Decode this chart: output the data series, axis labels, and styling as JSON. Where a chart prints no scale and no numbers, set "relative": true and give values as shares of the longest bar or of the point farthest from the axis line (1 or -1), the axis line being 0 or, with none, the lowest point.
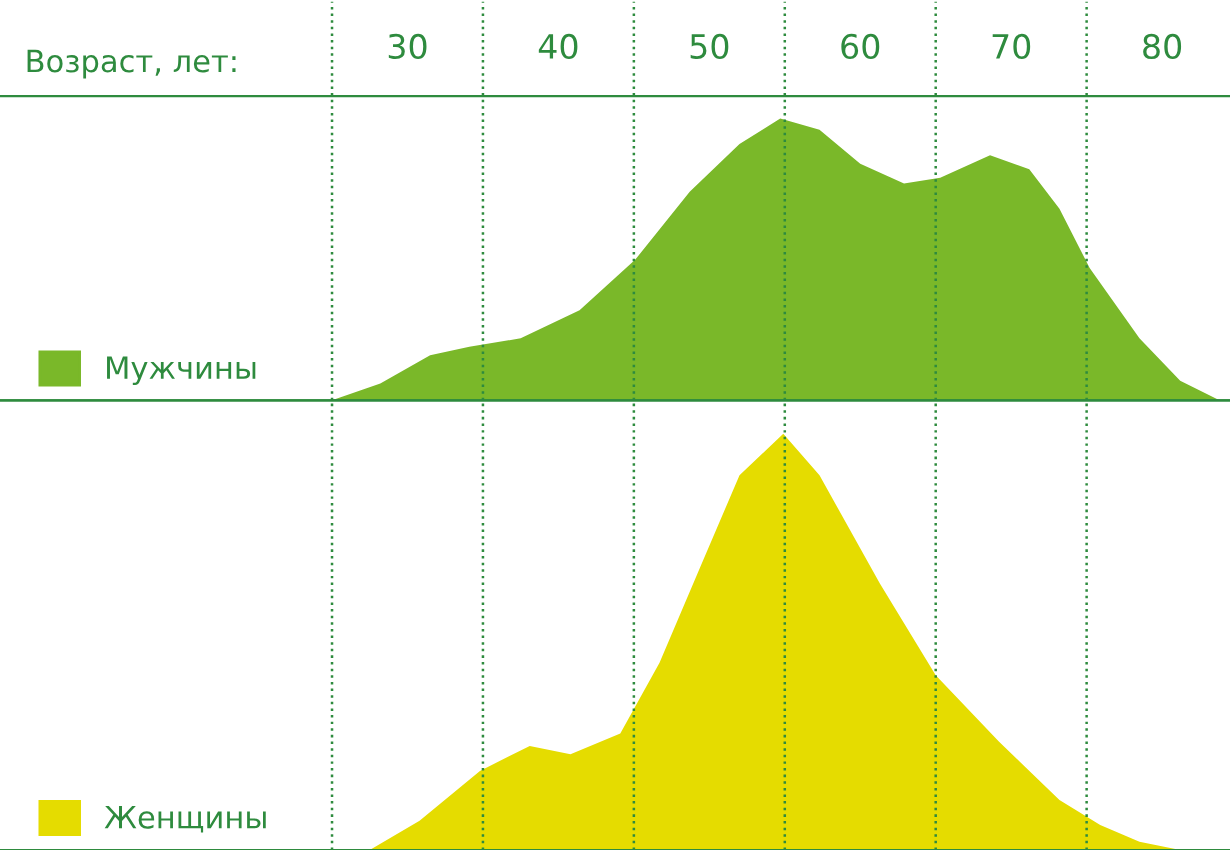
{
  "chart_data": [
    {
      "type": "area",
      "xlabel": "Возраст, лет:",
      "relative": true,
      "xlim": [
        3,
        84.5
      ],
      "xticks": [
        30,
        40,
        50,
        60,
        70,
        80
      ],
      "tick_labels": "x",
      "legend": "bottom left",
      "grid": false,
      "x": [
        25,
        28.2,
        31.5,
        34.1,
        37.5,
        41.4,
        45.1,
        48.7,
        52.0,
        54.7,
        57.3,
        60,
        62.9,
        65.3,
        68.6,
        71.2,
        73.2,
        75.2,
        78.5,
        81.2,
        83.8
      ],
      "series": [
        {
          "name": "Мужчины",
          "color": "#7ab829",
          "values": [
            0,
            0.06,
            0.16,
            0.19,
            0.22,
            0.32,
            0.5,
            0.74,
            0.91,
            1.0,
            0.96,
            0.84,
            0.77,
            0.79,
            0.87,
            0.82,
            0.68,
            0.47,
            0.22,
            0.07,
            0
          ]
        }
      ],
      "ref_lines": [
        {
          "axis": "x",
          "value": 25,
          "color": "#2e8b3e",
          "line_style": "dotted"
        },
        {
          "axis": "x",
          "value": 35,
          "color": "#2e8b3e",
          "line_style": "dotted"
        },
        {
          "axis": "x",
          "value": 45,
          "color": "#2e8b3e",
          "line_style": "dotted"
        },
        {
          "axis": "x",
          "value": 55,
          "color": "#2e8b3e",
          "line_style": "dotted"
        },
        {
          "axis": "x",
          "value": 65,
          "color": "#2e8b3e",
          "line_style": "dotted"
        },
        {
          "axis": "x",
          "value": 75,
          "color": "#2e8b3e",
          "line_style": "dotted"
        }
      ]
    },
    {
      "type": "area",
      "relative": true,
      "xlim": [
        3,
        84.5
      ],
      "tick_labels": false,
      "legend": "bottom left",
      "grid": false,
      "x": [
        27.5,
        30.8,
        34.8,
        38.1,
        40.8,
        44.1,
        46.7,
        49.4,
        52.0,
        54.9,
        57.3,
        61.3,
        65.0,
        69.2,
        73.2,
        75.9,
        78.5,
        81.2
      ],
      "series": [
        {
          "name": "Женщины",
          "color": "#e5dc00",
          "values": [
            0,
            0.07,
            0.19,
            0.25,
            0.23,
            0.28,
            0.45,
            0.68,
            0.9,
            1.0,
            0.9,
            0.64,
            0.42,
            0.26,
            0.12,
            0.06,
            0.02,
            0
          ]
        }
      ],
      "ref_lines": [
        {
          "axis": "x",
          "value": 25,
          "color": "#2e8b3e",
          "line_style": "dotted"
        },
        {
          "axis": "x",
          "value": 35,
          "color": "#2e8b3e",
          "line_style": "dotted"
        },
        {
          "axis": "x",
          "value": 45,
          "color": "#2e8b3e",
          "line_style": "dotted"
        },
        {
          "axis": "x",
          "value": 55,
          "color": "#2e8b3e",
          "line_style": "dotted"
        },
        {
          "axis": "x",
          "value": 65,
          "color": "#2e8b3e",
          "line_style": "dotted"
        },
        {
          "axis": "x",
          "value": 75,
          "color": "#2e8b3e",
          "line_style": "dotted"
        }
      ]
    }
  ]
}
